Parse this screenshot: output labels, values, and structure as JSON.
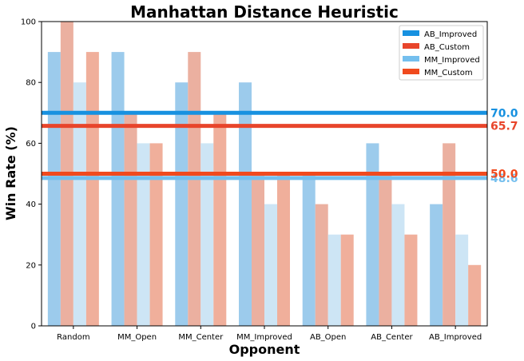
{
  "chart_data": {
    "type": "bar",
    "title": "Manhattan Distance Heuristic",
    "xlabel": "Opponent",
    "ylabel": "Win Rate (%)",
    "ylim": [
      0,
      100
    ],
    "yticks": [
      "0",
      "20",
      "40",
      "60",
      "80",
      "100"
    ],
    "grid": false,
    "legend_position": "top-right",
    "categories": [
      "Random",
      "MM_Open",
      "MM_Center",
      "MM_Improved",
      "AB_Open",
      "AB_Center",
      "AB_Improved"
    ],
    "series": [
      {
        "name": "AB_Improved",
        "values": [
          90,
          90,
          80,
          80,
          50,
          60,
          40
        ],
        "color": "#9ccbec"
      },
      {
        "name": "AB_Custom",
        "values": [
          100,
          70,
          90,
          50,
          40,
          50,
          60
        ],
        "color": "#ebb0a0"
      },
      {
        "name": "MM_Improved",
        "values": [
          80,
          60,
          60,
          40,
          30,
          40,
          30
        ],
        "color": "#cde5f5"
      },
      {
        "name": "MM_Custom",
        "values": [
          90,
          60,
          70,
          50,
          30,
          30,
          20
        ],
        "color": "#f0af9b"
      }
    ],
    "averages": [
      {
        "series": "AB_Improved",
        "value": 70.0,
        "label": "70.0",
        "color": "#1791e0"
      },
      {
        "series": "AB_Custom",
        "value": 65.7,
        "label": "65.7",
        "color": "#e8452b"
      },
      {
        "series": "MM_Improved",
        "value": 48.6,
        "label": "48.6",
        "color": "#74bfee"
      },
      {
        "series": "MM_Custom",
        "value": 50.0,
        "label": "50.0",
        "color": "#f04a1e"
      }
    ],
    "legend": [
      {
        "label": "AB_Improved",
        "color": "#1791e0"
      },
      {
        "label": "AB_Custom",
        "color": "#e8452b"
      },
      {
        "label": "MM_Improved",
        "color": "#74bfee"
      },
      {
        "label": "MM_Custom",
        "color": "#f04a1e"
      }
    ]
  }
}
